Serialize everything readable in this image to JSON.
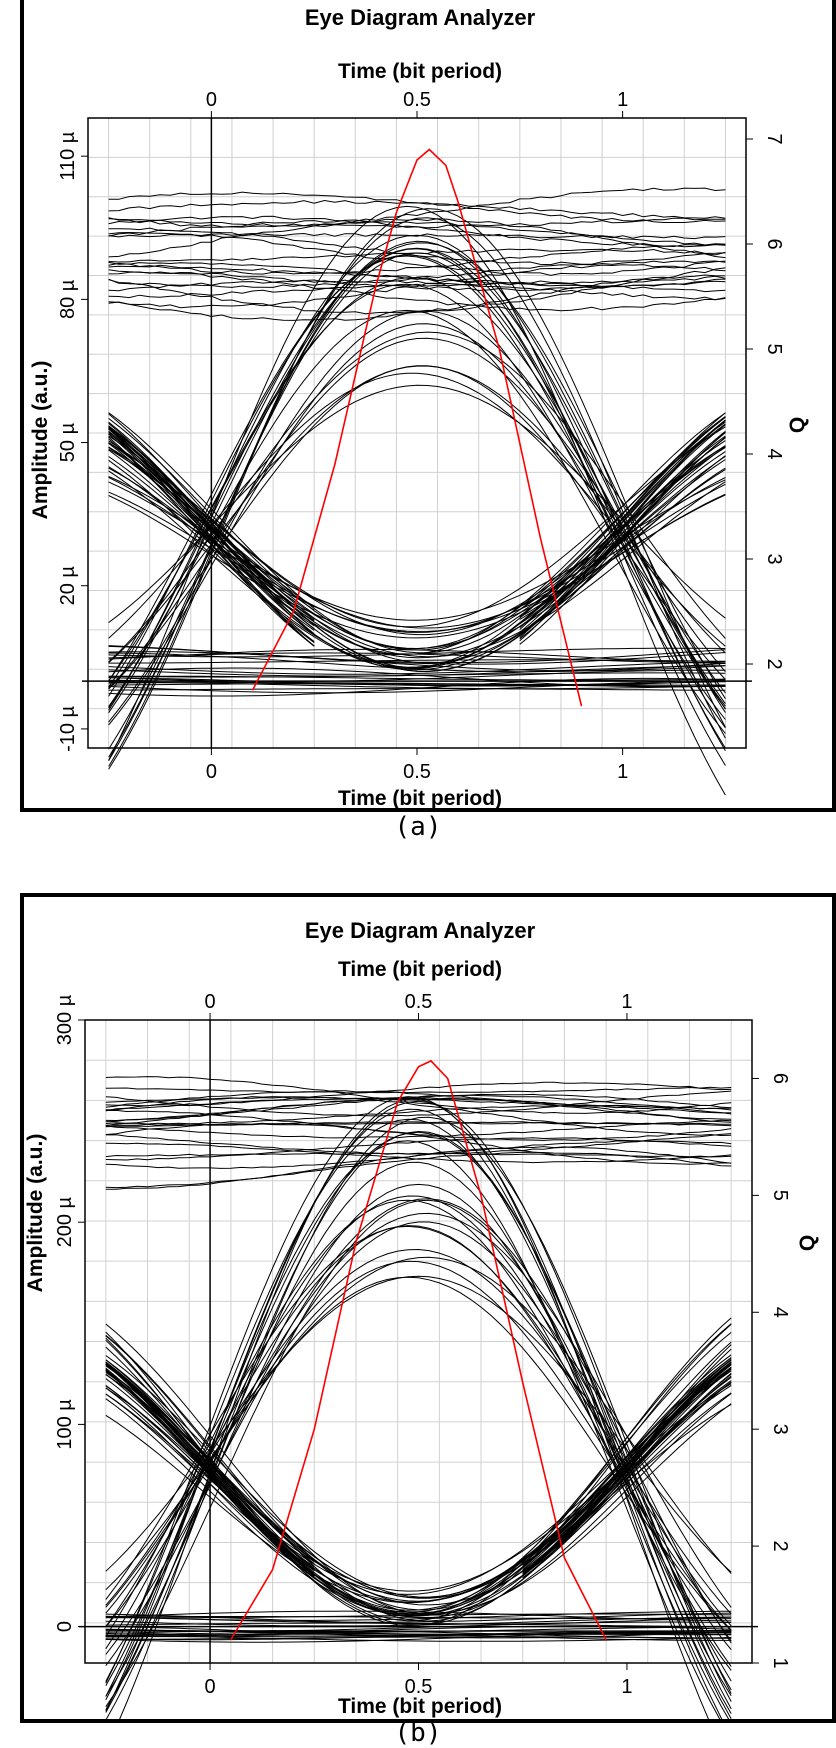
{
  "captions": {
    "a": "(a)",
    "b": "(b)"
  },
  "colors": {
    "traces": "#000000",
    "q_curve": "#ff0000",
    "grid": "#d0d0d0"
  },
  "chart_data": [
    {
      "type": "line",
      "panel": "a",
      "title": "Eye Diagram Analyzer",
      "xlabel": "Time (bit period)",
      "x2label": "Time (bit period)",
      "ylabel": "Amplitude (a.u.)",
      "y2label": "Q",
      "xlim": [
        -0.3,
        1.3
      ],
      "ylim": [
        -14,
        118
      ],
      "y2lim": [
        1.2,
        7.2
      ],
      "xticks": [
        "0",
        "0.5",
        "1"
      ],
      "xtick_values": [
        0,
        0.5,
        1
      ],
      "yticks": [
        "-10 µ",
        "20 µ",
        "50 µ",
        "80 µ",
        "110 µ"
      ],
      "ytick_values": [
        -10,
        20,
        50,
        80,
        110
      ],
      "y2ticks": [
        "2",
        "3",
        "4",
        "5",
        "6",
        "7"
      ],
      "y2tick_values": [
        2,
        3,
        4,
        5,
        6,
        7
      ],
      "grid": true,
      "eye": {
        "one_level": 90,
        "one_spread": 10,
        "zero_level": 2,
        "zero_spread": 4,
        "crossing_amplitude": 31,
        "eye_bottom": 62,
        "traces_per_group": 22
      },
      "q_curve": {
        "x": [
          0.1,
          0.2,
          0.3,
          0.4,
          0.45,
          0.5,
          0.53,
          0.57,
          0.6,
          0.7,
          0.8,
          0.9
        ],
        "y": [
          1.75,
          2.5,
          3.9,
          5.6,
          6.3,
          6.8,
          6.9,
          6.75,
          6.4,
          5.0,
          3.2,
          1.6
        ]
      }
    },
    {
      "type": "line",
      "panel": "b",
      "title": "Eye Diagram Analyzer",
      "xlabel": "Time (bit period)",
      "x2label": "Time (bit period)",
      "ylabel": "Amplitude (a.u.)",
      "y2label": "Q",
      "xlim": [
        -0.3,
        1.3
      ],
      "ylim": [
        -18,
        300
      ],
      "y2lim": [
        1.0,
        6.5
      ],
      "xticks": [
        "0",
        "0.5",
        "1"
      ],
      "xtick_values": [
        0,
        0.5,
        1
      ],
      "yticks": [
        "0",
        "100 µ",
        "200 µ",
        "300 µ"
      ],
      "ytick_values": [
        0,
        100,
        200,
        300
      ],
      "y2ticks": [
        "1",
        "2",
        "3",
        "4",
        "5",
        "6"
      ],
      "y2tick_values": [
        1,
        2,
        3,
        4,
        5,
        6
      ],
      "grid": true,
      "eye": {
        "one_level": 245,
        "one_spread": 22,
        "zero_level": 0,
        "zero_spread": 6,
        "crossing_amplitude": 78,
        "eye_bottom": 170,
        "traces_per_group": 24
      },
      "q_curve": {
        "x": [
          0.05,
          0.15,
          0.25,
          0.35,
          0.45,
          0.5,
          0.53,
          0.57,
          0.65,
          0.75,
          0.85,
          0.95
        ],
        "y": [
          1.2,
          1.8,
          3.0,
          4.6,
          5.8,
          6.1,
          6.15,
          6.0,
          5.0,
          3.4,
          1.9,
          1.2
        ]
      }
    }
  ]
}
